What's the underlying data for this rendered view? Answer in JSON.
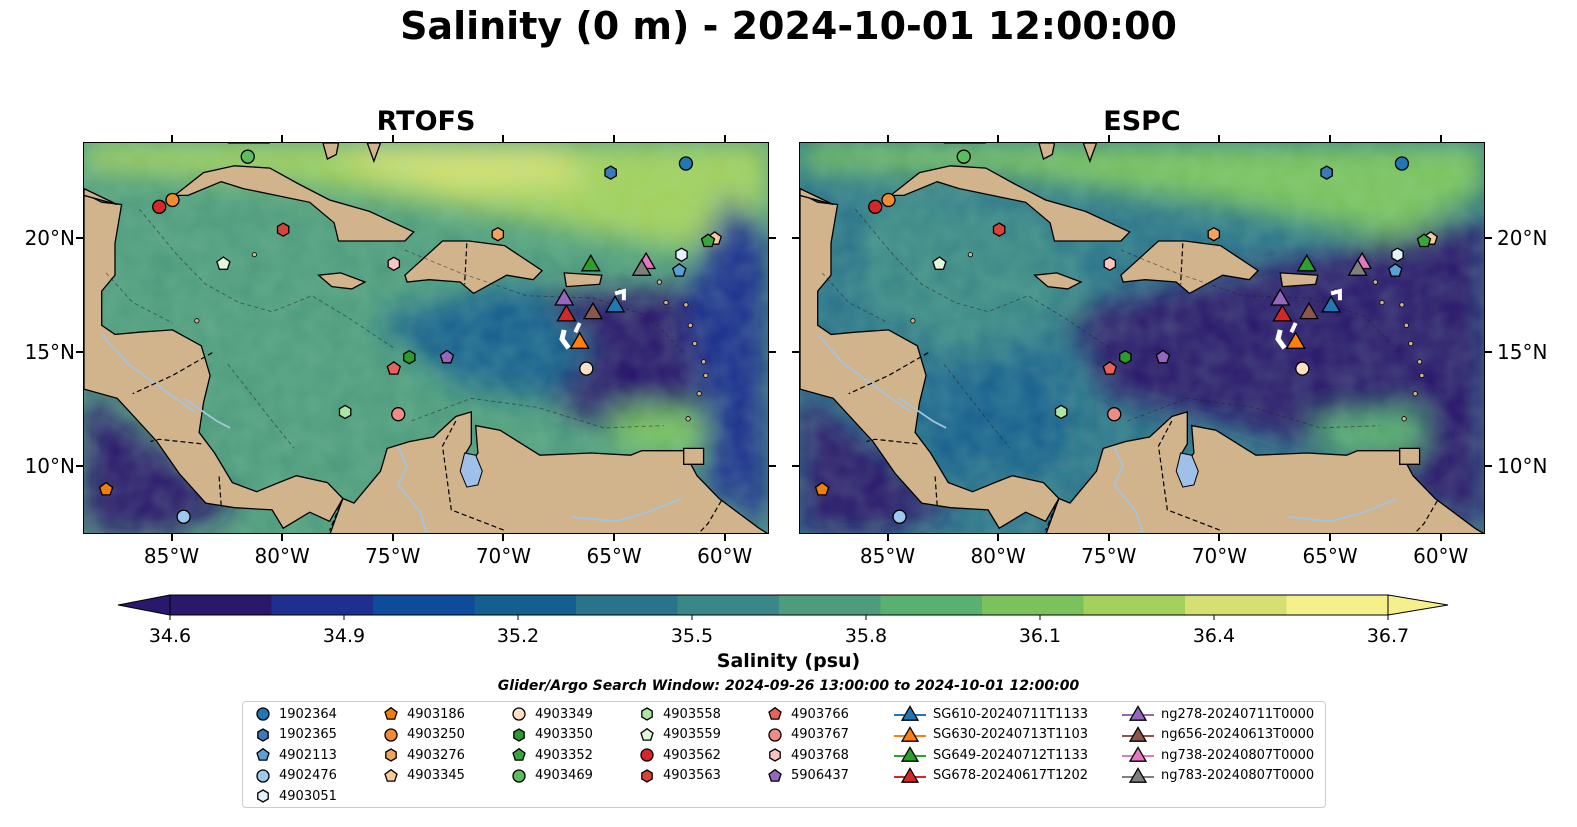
{
  "title": "Salinity (0 m) - 2024-10-01 12:00:00",
  "panels": [
    {
      "title": "RTOFS",
      "side": "left"
    },
    {
      "title": "ESPC",
      "side": "right"
    }
  ],
  "map_extent": {
    "lon": [
      -89,
      -58
    ],
    "lat": [
      7,
      24.2
    ]
  },
  "x_ticks": [
    "85°W",
    "80°W",
    "75°W",
    "70°W",
    "65°W",
    "60°W"
  ],
  "x_tick_values": [
    -85,
    -80,
    -75,
    -70,
    -65,
    -60
  ],
  "y_ticks": [
    "20°N",
    "15°N",
    "10°N"
  ],
  "y_tick_values": [
    20,
    15,
    10
  ],
  "colorbar": {
    "label": "Salinity (psu)",
    "ticks": [
      "34.6",
      "34.9",
      "35.2",
      "35.5",
      "35.8",
      "36.1",
      "36.4",
      "36.7"
    ],
    "tick_values": [
      34.6,
      34.9,
      35.2,
      35.5,
      35.8,
      36.1,
      36.4,
      36.7
    ],
    "range": [
      34.6,
      36.7
    ],
    "colormap": "haline",
    "extend": "both",
    "colors": [
      "#2a186c",
      "#1f2f8f",
      "#0f4b9b",
      "#135f8f",
      "#2b738b",
      "#3b8787",
      "#4f9b7e",
      "#5ab071",
      "#7bc25f",
      "#a4d05d",
      "#d6e072",
      "#f5ef8c"
    ]
  },
  "search_window": "Glider/Argo Search Window: 2024-09-26 13:00:00 to 2024-10-01 12:00:00",
  "colors": {
    "land": "#d2b48c",
    "lake": "#9fc0e8",
    "river": "#a8c3dc",
    "coast": "#000000"
  },
  "legend": [
    {
      "label": "1902364",
      "marker": "circle",
      "color": "#1f77b4"
    },
    {
      "label": "1902365",
      "marker": "hexagon",
      "color": "#3a7ab8"
    },
    {
      "label": "4902113",
      "marker": "pentagon",
      "color": "#5aa0d8"
    },
    {
      "label": "4902476",
      "marker": "circle",
      "color": "#9ec9ef"
    },
    {
      "label": "4903051",
      "marker": "hexagon",
      "color": "#e4f1fb"
    },
    {
      "label": "4903186",
      "marker": "pentagon",
      "color": "#f07f0a"
    },
    {
      "label": "4903250",
      "marker": "circle",
      "color": "#f18a32"
    },
    {
      "label": "4903276",
      "marker": "hexagon",
      "color": "#f5a35a"
    },
    {
      "label": "4903345",
      "marker": "pentagon",
      "color": "#f8c99a"
    },
    {
      "label": "4903349",
      "marker": "circle",
      "color": "#fbe0c6"
    },
    {
      "label": "4903350",
      "marker": "hexagon",
      "color": "#2c9a2c"
    },
    {
      "label": "4903352",
      "marker": "pentagon",
      "color": "#3aa53a"
    },
    {
      "label": "4903469",
      "marker": "circle",
      "color": "#5cbd5c"
    },
    {
      "label": "4903558",
      "marker": "hexagon",
      "color": "#aee5a4"
    },
    {
      "label": "4903559",
      "marker": "pentagon",
      "color": "#e2f7dc"
    },
    {
      "label": "4903562",
      "marker": "circle",
      "color": "#d62728"
    },
    {
      "label": "4903563",
      "marker": "hexagon",
      "color": "#d9433a"
    },
    {
      "label": "4903766",
      "marker": "pentagon",
      "color": "#e8625c"
    },
    {
      "label": "4903767",
      "marker": "circle",
      "color": "#f08c86"
    },
    {
      "label": "4903768",
      "marker": "hexagon",
      "color": "#f9c4c0"
    },
    {
      "label": "5906437",
      "marker": "pentagon",
      "color": "#9467bd"
    },
    {
      "label": "SG610-20240711T1133",
      "marker": "triangle-line",
      "color": "#1f77b4"
    },
    {
      "label": "SG630-20240713T1103",
      "marker": "triangle-line",
      "color": "#ff7f0e"
    },
    {
      "label": "SG649-20240712T1133",
      "marker": "triangle-line",
      "color": "#2ca02c"
    },
    {
      "label": "SG678-20240617T1202",
      "marker": "triangle-line",
      "color": "#d62728"
    },
    {
      "label": "ng278-20240711T0000",
      "marker": "triangle-line",
      "color": "#9467bd"
    },
    {
      "label": "ng656-20240613T0000",
      "marker": "triangle-line",
      "color": "#8c564b"
    },
    {
      "label": "ng738-20240807T0000",
      "marker": "triangle-line",
      "color": "#e377c2"
    },
    {
      "label": "ng783-20240807T0000",
      "marker": "triangle-line",
      "color": "#7f7f7f"
    }
  ],
  "observations": [
    {
      "id": "1902364",
      "lon": -61.8,
      "lat": 23.3
    },
    {
      "id": "1902365",
      "lon": -65.2,
      "lat": 22.9
    },
    {
      "id": "4902113",
      "lon": -62.1,
      "lat": 18.6
    },
    {
      "id": "4902476",
      "lon": -84.5,
      "lat": 7.8
    },
    {
      "id": "4903051",
      "lon": -62.0,
      "lat": 19.3
    },
    {
      "id": "4903186",
      "lon": -88.0,
      "lat": 9.0
    },
    {
      "id": "4903250",
      "lon": -85.0,
      "lat": 21.7
    },
    {
      "id": "4903276",
      "lon": -70.3,
      "lat": 20.2
    },
    {
      "id": "4903345",
      "lon": -60.5,
      "lat": 20.0
    },
    {
      "id": "4903349",
      "lon": -66.3,
      "lat": 14.3
    },
    {
      "id": "4903350",
      "lon": -74.3,
      "lat": 14.8
    },
    {
      "id": "4903352",
      "lon": -60.8,
      "lat": 19.9
    },
    {
      "id": "4903469",
      "lon": -81.6,
      "lat": 23.6
    },
    {
      "id": "4903558",
      "lon": -77.2,
      "lat": 12.4
    },
    {
      "id": "4903559",
      "lon": -82.7,
      "lat": 18.9
    },
    {
      "id": "4903562",
      "lon": -85.6,
      "lat": 21.4
    },
    {
      "id": "4903563",
      "lon": -80.0,
      "lat": 20.4
    },
    {
      "id": "4903766",
      "lon": -75.0,
      "lat": 14.3
    },
    {
      "id": "4903767",
      "lon": -74.8,
      "lat": 12.3
    },
    {
      "id": "4903768",
      "lon": -75.0,
      "lat": 18.9
    },
    {
      "id": "5906437",
      "lon": -72.6,
      "lat": 14.8
    },
    {
      "id": "SG610-20240711T1133",
      "lon": -65.0,
      "lat": 17.1
    },
    {
      "id": "SG630-20240713T1103",
      "lon": -66.6,
      "lat": 15.5
    },
    {
      "id": "SG649-20240712T1133",
      "lon": -66.1,
      "lat": 18.9
    },
    {
      "id": "SG678-20240617T1202",
      "lon": -67.2,
      "lat": 16.7
    },
    {
      "id": "ng278-20240711T0000",
      "lon": -67.3,
      "lat": 17.4
    },
    {
      "id": "ng656-20240613T0000",
      "lon": -66.0,
      "lat": 16.8
    },
    {
      "id": "ng738-20240807T0000",
      "lon": -63.6,
      "lat": 19.0
    },
    {
      "id": "ng783-20240807T0000",
      "lon": -63.8,
      "lat": 18.7
    }
  ]
}
